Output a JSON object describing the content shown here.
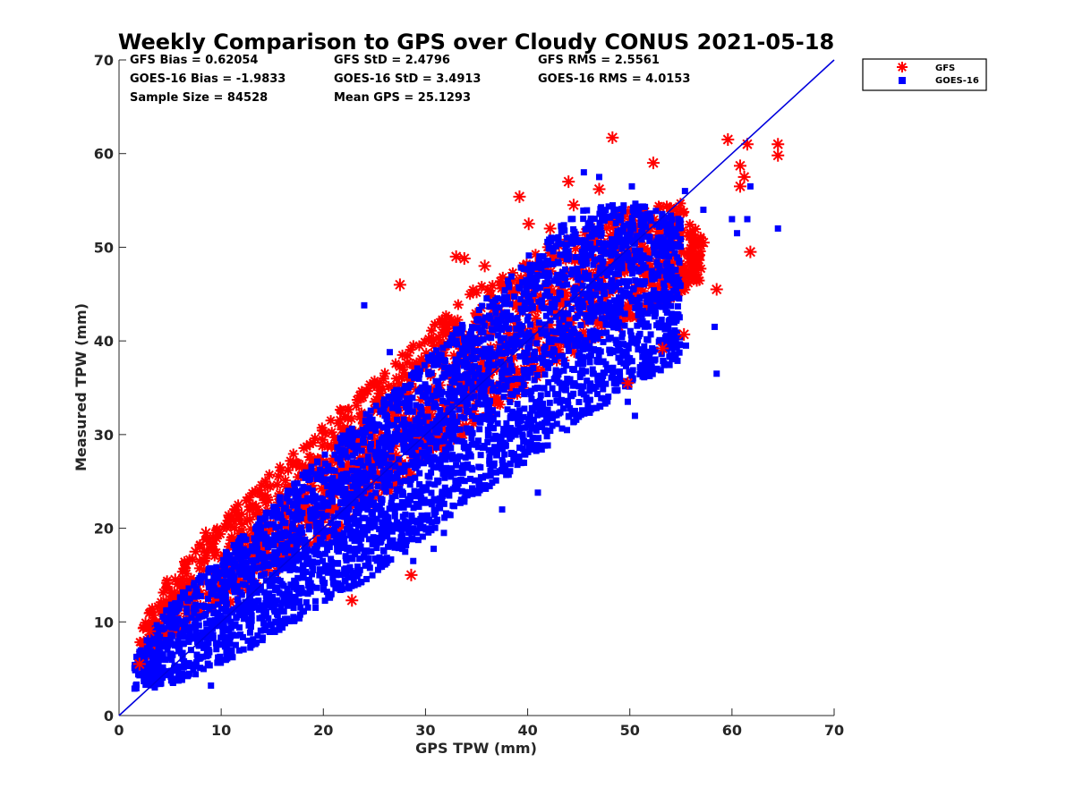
{
  "colors": {
    "gfs": "#ff0000",
    "goes16": "#0000ff",
    "axis": "#262626",
    "one_to_one_line": "#0000dd"
  },
  "chart_data": {
    "type": "scatter",
    "title": "Weekly Comparison to GPS over Cloudy CONUS 2021-05-18",
    "xlabel": "GPS TPW (mm)",
    "ylabel": "Measured TPW (mm)",
    "xlim": [
      0,
      70
    ],
    "ylim": [
      0,
      70
    ],
    "x_ticks": [
      "0",
      "10",
      "20",
      "30",
      "40",
      "50",
      "60",
      "70"
    ],
    "y_ticks": [
      "0",
      "10",
      "20",
      "30",
      "40",
      "50",
      "60",
      "70"
    ],
    "grid": false,
    "legend_position": "top-right-outside",
    "reference_line": {
      "from": [
        0,
        0
      ],
      "to": [
        70,
        70
      ]
    },
    "stats": {
      "gfs_bias": "GFS Bias = 0.62054",
      "gfs_std": "GFS StD = 2.4796",
      "gfs_rms": "GFS RMS = 2.5561",
      "goes_bias": "GOES-16 Bias = -1.9833",
      "goes_std": "GOES-16 StD = 3.4913",
      "goes_rms": "GOES-16 RMS = 4.0153",
      "sample_size": "Sample Size = 84528",
      "mean_gps": "Mean GPS = 25.1293"
    },
    "series": [
      {
        "name": "GFS",
        "marker": "asterisk",
        "color": "#ff0000",
        "band": [
          [
            2,
            5.2,
            9.5
          ],
          [
            5,
            8,
            15
          ],
          [
            10,
            11.5,
            21
          ],
          [
            15,
            14.5,
            26
          ],
          [
            20,
            18.5,
            31
          ],
          [
            25,
            22.5,
            36
          ],
          [
            30,
            26.5,
            41
          ],
          [
            35,
            31,
            46
          ],
          [
            40,
            35,
            49
          ],
          [
            45,
            39,
            52
          ],
          [
            50,
            42,
            54
          ],
          [
            55,
            45,
            55
          ],
          [
            57,
            46,
            51
          ]
        ],
        "outliers": [
          [
            48.3,
            61.7
          ],
          [
            59.6,
            61.5
          ],
          [
            61.5,
            61
          ],
          [
            64.5,
            61
          ],
          [
            64.5,
            59.8
          ],
          [
            60.8,
            58.7
          ],
          [
            61.2,
            57.5
          ],
          [
            60.8,
            56.5
          ],
          [
            52.3,
            59
          ],
          [
            47,
            56.2
          ],
          [
            44,
            57
          ],
          [
            39.2,
            55.4
          ],
          [
            61.8,
            49.5
          ],
          [
            58.5,
            45.5
          ],
          [
            55.3,
            40.7
          ],
          [
            53.2,
            39.2
          ],
          [
            57.2,
            50.5
          ],
          [
            55.5,
            47
          ],
          [
            49.8,
            35.5
          ],
          [
            28.6,
            15
          ],
          [
            22.8,
            12.3
          ],
          [
            17,
            26.8
          ],
          [
            12,
            21.5
          ],
          [
            8.5,
            19.5
          ],
          [
            7.5,
            17.5
          ],
          [
            5.5,
            14.5
          ],
          [
            3,
            9
          ],
          [
            2,
            5.5
          ],
          [
            27.5,
            46
          ],
          [
            33,
            49
          ],
          [
            33.8,
            48.8
          ],
          [
            35.8,
            48
          ],
          [
            40.1,
            52.5
          ],
          [
            42.2,
            52
          ],
          [
            44.5,
            54.5
          ]
        ]
      },
      {
        "name": "GOES-16",
        "marker": "square",
        "color": "#0000ff",
        "band": [
          [
            1.5,
            2.8,
            6
          ],
          [
            5,
            3.2,
            12
          ],
          [
            10,
            5.5,
            17
          ],
          [
            15,
            8.5,
            22.5
          ],
          [
            20,
            12,
            28
          ],
          [
            25,
            15,
            33
          ],
          [
            30,
            19,
            38
          ],
          [
            35,
            23.5,
            43.5
          ],
          [
            40,
            27,
            49
          ],
          [
            45,
            31.5,
            54
          ],
          [
            50,
            35,
            55
          ],
          [
            55,
            38,
            53
          ]
        ],
        "outliers": [
          [
            45.5,
            58
          ],
          [
            47,
            57.5
          ],
          [
            50.2,
            56.5
          ],
          [
            55.4,
            56
          ],
          [
            57.2,
            54
          ],
          [
            60,
            53
          ],
          [
            61.8,
            56.5
          ],
          [
            61.5,
            53
          ],
          [
            64.5,
            52
          ],
          [
            60.5,
            51.5
          ],
          [
            58.3,
            41.5
          ],
          [
            58.5,
            36.5
          ],
          [
            55.5,
            39.5
          ],
          [
            24,
            43.8
          ],
          [
            26.5,
            38.8
          ],
          [
            30.8,
            17.8
          ],
          [
            31.8,
            19.5
          ],
          [
            37.5,
            22
          ],
          [
            41,
            23.8
          ],
          [
            49.8,
            33.5
          ],
          [
            50.5,
            32
          ],
          [
            28.8,
            16.5
          ],
          [
            3.5,
            3
          ],
          [
            9,
            3.2
          ]
        ]
      }
    ]
  }
}
